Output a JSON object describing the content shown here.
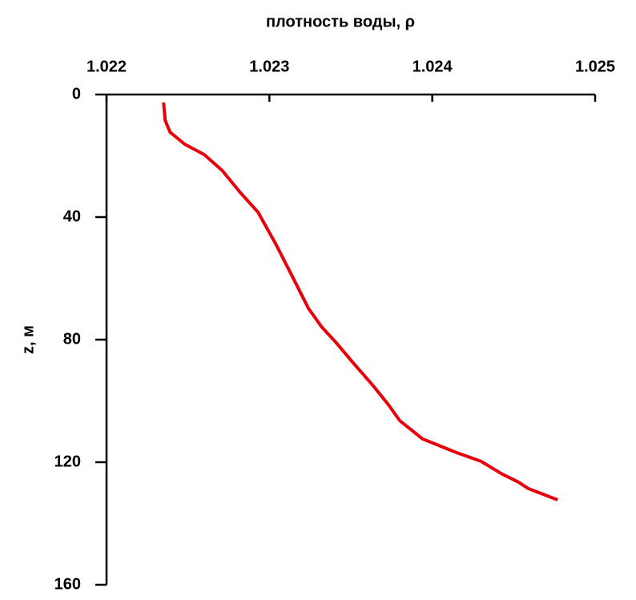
{
  "chart_data": {
    "type": "line",
    "title": "плотность воды, ρ",
    "ylabel": "z, м",
    "series": [
      {
        "color": "#e8000b",
        "values": [
          1.02235,
          1.02236,
          1.02239,
          1.02248,
          1.0226,
          1.02271,
          1.02282,
          1.02293,
          1.02304,
          1.02314,
          1.02324,
          1.02332,
          1.02341,
          1.02351,
          1.02363,
          1.02373,
          1.0238,
          1.02394,
          1.02415,
          1.0243,
          1.02443,
          1.02453,
          1.02459,
          1.02477
        ],
        "depth": [
          2.6,
          8.4,
          12.3,
          16.2,
          19.6,
          24.8,
          31.9,
          38.4,
          48.9,
          59.3,
          69.8,
          75.8,
          81.0,
          87.3,
          94.6,
          101.2,
          106.4,
          112.4,
          116.9,
          119.7,
          123.9,
          126.5,
          128.6,
          132.3
        ]
      }
    ],
    "xlim": [
      1.022,
      1.025
    ],
    "xticks": [
      1.022,
      1.023,
      1.024,
      1.025
    ],
    "ylim": [
      0,
      160
    ],
    "yticks": [
      0,
      40,
      80,
      120,
      160
    ],
    "y_inverted": true
  }
}
